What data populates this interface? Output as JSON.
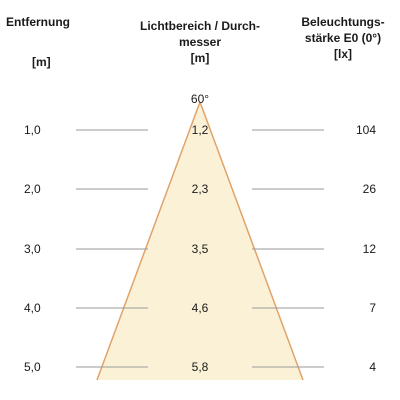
{
  "headers": {
    "distance": "Entfernung",
    "distance_unit": "[m]",
    "diameter_line1": "Lichtbereich / Durch-",
    "diameter_line2": "messer",
    "diameter_unit": "[m]",
    "illuminance_line1": "Beleuchtungs-",
    "illuminance_line2": "stärke E0 (0°)",
    "illuminance_unit": "[lx]"
  },
  "beam_angle": "60°",
  "rows": [
    {
      "distance": "1,0",
      "diameter": "1,2",
      "illuminance": "104"
    },
    {
      "distance": "2,0",
      "diameter": "2,3",
      "illuminance": "26"
    },
    {
      "distance": "3,0",
      "diameter": "3,5",
      "illuminance": "12"
    },
    {
      "distance": "4,0",
      "diameter": "4,6",
      "illuminance": "7"
    },
    {
      "distance": "5,0",
      "diameter": "5,8",
      "illuminance": "4"
    }
  ],
  "colors": {
    "cone_fill": "#fbf1d6",
    "cone_edge": "#e0a46a",
    "guide_line": "#9a9a9a"
  }
}
